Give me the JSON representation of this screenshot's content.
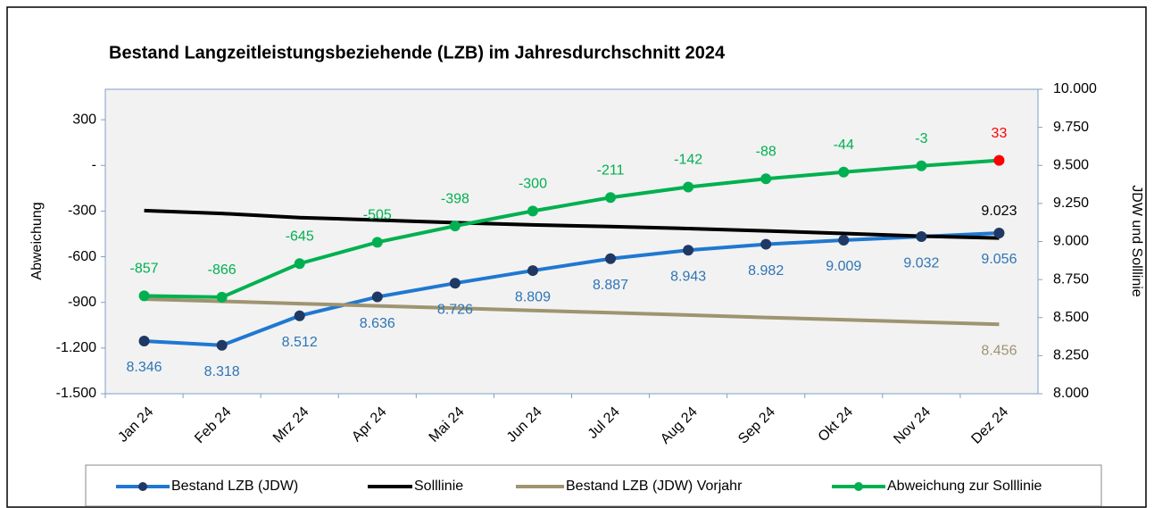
{
  "chart_data": {
    "type": "line",
    "title": "Bestand Langzeitleistungsbeziehende (LZB) im Jahresdurchschnitt 2024",
    "y_label": "Abweichung",
    "y2_label": "JDW und Solllinie",
    "categories": [
      "Jan 24",
      "Feb 24",
      "Mrz 24",
      "Apr 24",
      "Mai 24",
      "Jun 24",
      "Jul 24",
      "Aug 24",
      "Sep 24",
      "Okt 24",
      "Nov 24",
      "Dez 24"
    ],
    "ylim": [
      -1500,
      500
    ],
    "yticks": [
      {
        "value": -1500,
        "label": "-1.500"
      },
      {
        "value": -1200,
        "label": "-1.200"
      },
      -900,
      -600,
      -300,
      {
        "value": 0,
        "label": "-"
      },
      300
    ],
    "y2lim": [
      8000,
      10000
    ],
    "y2ticks": [
      {
        "value": 8000,
        "label": "8.000"
      },
      {
        "value": 8250,
        "label": "8.250"
      },
      {
        "value": 8500,
        "label": "8.500"
      },
      {
        "value": 8750,
        "label": "8.750"
      },
      {
        "value": 9000,
        "label": "9.000"
      },
      {
        "value": 9250,
        "label": "9.250"
      },
      {
        "value": 9500,
        "label": "9.500"
      },
      {
        "value": 9750,
        "label": "9.750"
      },
      {
        "value": 10000,
        "label": "10.000"
      }
    ],
    "series": [
      {
        "name": "Bestand LZB (JDW)",
        "color": "#1f78d1",
        "marker_color": "#203864",
        "label_color": "#2e75b6",
        "label_position": "below",
        "axis": "y2",
        "values": [
          8346,
          8318,
          8512,
          8636,
          8726,
          8809,
          8887,
          8943,
          8982,
          9009,
          9032,
          9056
        ],
        "value_labels": [
          "8.346",
          "8.318",
          "8.512",
          "8.636",
          "8.726",
          "8.809",
          "8.887",
          "8.943",
          "8.982",
          "9.009",
          "9.032",
          "9.056"
        ]
      },
      {
        "name": "Solllinie",
        "color": "#000000",
        "label_color": "#000000",
        "label_position": "above",
        "axis": "y2",
        "values": [
          9203,
          9184,
          9157,
          9141,
          9124,
          9109,
          9098,
          9085,
          9070,
          9053,
          9035,
          9023
        ],
        "value_labels": [
          null,
          null,
          null,
          null,
          null,
          null,
          null,
          null,
          null,
          null,
          null,
          "9.023"
        ]
      },
      {
        "name": "Bestand LZB (JDW) Vorjahr",
        "color": "#9e9470",
        "label_color": "#9e9470",
        "label_position": "below",
        "axis": "y2",
        "values": [
          8622,
          8607,
          8592,
          8577,
          8562,
          8547,
          8532,
          8517,
          8501,
          8486,
          8471,
          8456
        ],
        "value_labels": [
          null,
          null,
          null,
          null,
          null,
          null,
          null,
          null,
          null,
          null,
          null,
          "8.456"
        ]
      },
      {
        "name": "Abweichung zur Solllinie",
        "color": "#00b050",
        "marker_color": "#00b050",
        "label_color": "#00b050",
        "label_position": "above",
        "last_point_color": "#ff0000",
        "values": [
          -857,
          -866,
          -645,
          -505,
          -398,
          -300,
          -211,
          -142,
          -88,
          -44,
          -3,
          33
        ]
      }
    ]
  }
}
